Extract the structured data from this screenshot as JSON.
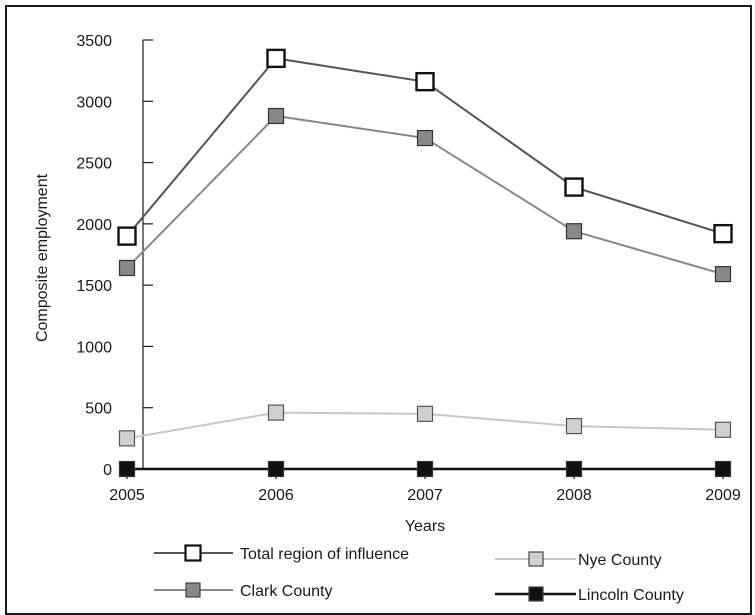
{
  "chart_data": {
    "type": "line",
    "title": "",
    "xlabel": "Years",
    "ylabel": "Composite employment",
    "x": [
      "2005",
      "2006",
      "2007",
      "2008",
      "2009"
    ],
    "ylim": [
      0,
      3500
    ],
    "yticks": [
      0,
      500,
      1000,
      1500,
      2000,
      2500,
      3000,
      3500
    ],
    "grid": false,
    "legend_position": "bottom",
    "series": [
      {
        "name": "Total region of influence",
        "values": [
          1900,
          3350,
          3160,
          2300,
          1920
        ],
        "color": "#555555",
        "marker_fill": "#ffffff"
      },
      {
        "name": "Clark County",
        "values": [
          1640,
          2880,
          2700,
          1940,
          1590
        ],
        "color": "#888888",
        "marker_fill": "#888888"
      },
      {
        "name": "Nye County",
        "values": [
          250,
          460,
          450,
          350,
          320
        ],
        "color": "#c8c8c8",
        "marker_fill": "#d0d0d0"
      },
      {
        "name": "Lincoln County",
        "values": [
          0,
          0,
          0,
          0,
          0
        ],
        "color": "#111111",
        "marker_fill": "#111111"
      }
    ]
  }
}
